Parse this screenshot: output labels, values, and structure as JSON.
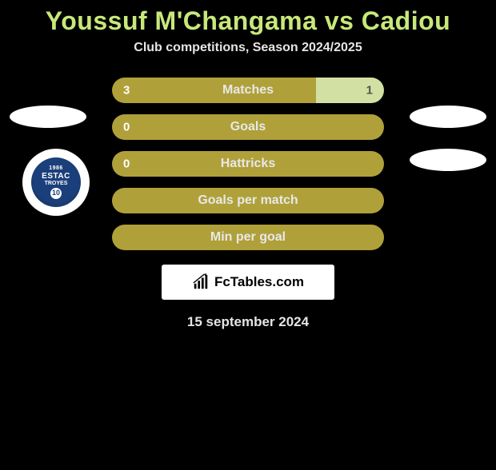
{
  "title": "Youssuf M'Changama vs Cadiou",
  "subtitle": "Club competitions, Season 2024/2025",
  "colors": {
    "accent": "#b0a039",
    "accent_light": "#d3e0a3",
    "title_color": "#c8e87a",
    "text": "#e5e5e5",
    "bg": "#000000",
    "side_oval": "#ffffff"
  },
  "rows": [
    {
      "label": "Matches",
      "left": "3",
      "right": "1",
      "left_pct": 75,
      "show_right": true
    },
    {
      "label": "Goals",
      "left": "0",
      "right": "",
      "left_pct": 100,
      "show_right": false
    },
    {
      "label": "Hattricks",
      "left": "0",
      "right": "",
      "left_pct": 100,
      "show_right": false
    },
    {
      "label": "Goals per match",
      "left": "",
      "right": "",
      "left_pct": 100,
      "show_right": false
    },
    {
      "label": "Min per goal",
      "left": "",
      "right": "",
      "left_pct": 100,
      "show_right": false
    }
  ],
  "badge": {
    "year": "1986",
    "name": "ESTAC",
    "town": "TROYES",
    "number": "10"
  },
  "brand": "FcTables.com",
  "date": "15 september 2024"
}
